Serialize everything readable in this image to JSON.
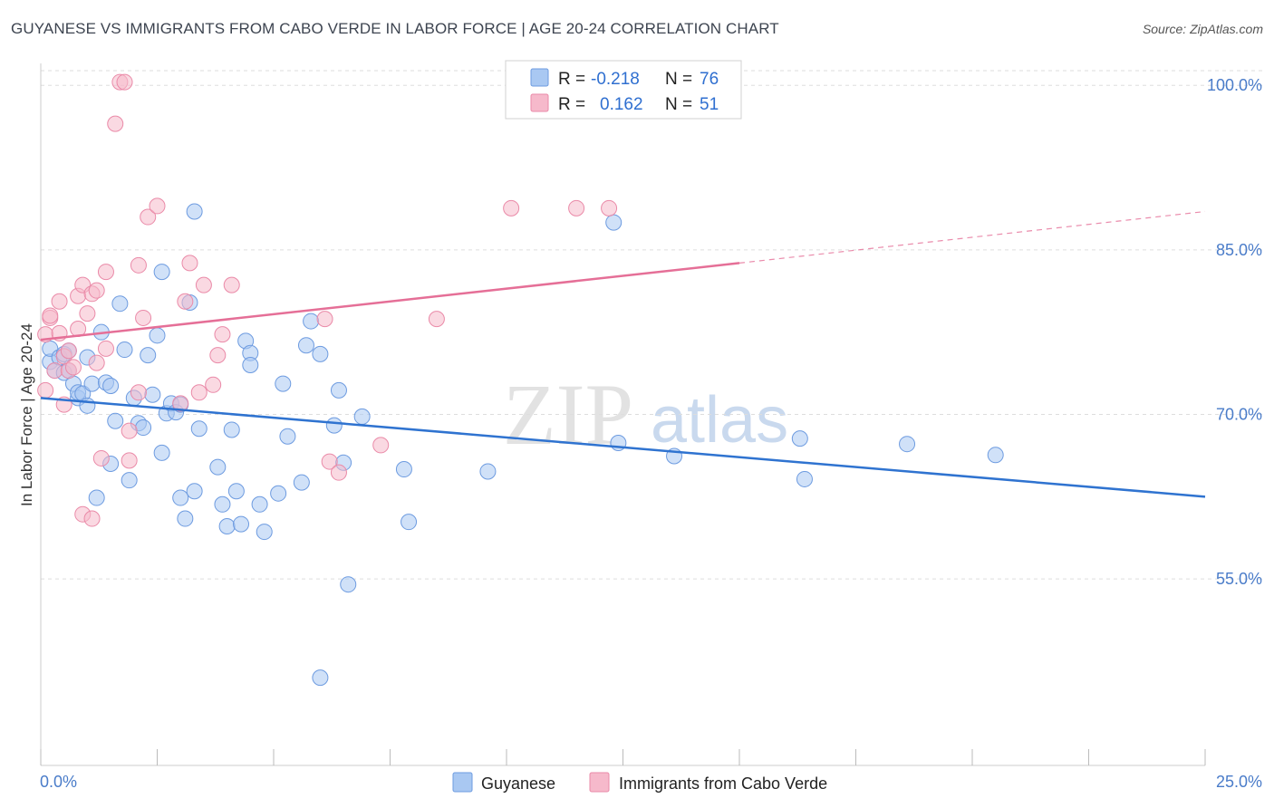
{
  "header": {
    "title": "GUYANESE VS IMMIGRANTS FROM CABO VERDE IN LABOR FORCE | AGE 20-24 CORRELATION CHART",
    "source": "Source: ZipAtlas.com"
  },
  "watermark": {
    "zip": "ZIP",
    "atlas": "atlas"
  },
  "legend": {
    "rows": [
      {
        "r_label": "R =",
        "r_value": "-0.218",
        "n_label": "N =",
        "n_value": "76"
      },
      {
        "r_label": "R =",
        "r_value": "0.162",
        "n_label": "N =",
        "n_value": "51"
      }
    ]
  },
  "colors": {
    "guyanese_fill": "#a9c8f2",
    "guyanese_stroke": "#6d9be0",
    "guyanese_line": "#2f73d0",
    "caboverde_fill": "#f6b9cb",
    "caboverde_stroke": "#ea8aa8",
    "caboverde_line": "#e56f97",
    "tick_label": "#4a7cc9",
    "grid": "#dddddd"
  },
  "chart_data": {
    "type": "scatter",
    "title": "GUYANESE VS IMMIGRANTS FROM CABO VERDE IN LABOR FORCE | AGE 20-24 CORRELATION CHART",
    "ylabel": "In Labor Force | Age 20-24",
    "xlabel": "",
    "xlim": [
      0,
      25
    ],
    "ylim": [
      38,
      102
    ],
    "x_tick_labels": [
      "0.0%",
      "25.0%"
    ],
    "x_tick_values": [
      0,
      25
    ],
    "y_tick_labels": [
      "100.0%",
      "85.0%",
      "70.0%",
      "55.0%"
    ],
    "y_tick_values": [
      100,
      85,
      70,
      55
    ],
    "grid": true,
    "legend_position": "top-center",
    "series": [
      {
        "name": "Guyanese",
        "r": -0.218,
        "n": 76,
        "trend": {
          "x0": 0,
          "y0": 71.5,
          "x1": 25,
          "y1": 62.5
        },
        "points": [
          [
            0.2,
            74.8
          ],
          [
            0.2,
            76.0
          ],
          [
            0.3,
            74.0
          ],
          [
            0.4,
            75.2
          ],
          [
            0.5,
            73.8
          ],
          [
            0.5,
            75.5
          ],
          [
            0.6,
            74.0
          ],
          [
            0.6,
            75.8
          ],
          [
            0.7,
            72.8
          ],
          [
            0.8,
            71.5
          ],
          [
            0.8,
            72.0
          ],
          [
            0.9,
            71.9
          ],
          [
            1.0,
            75.2
          ],
          [
            1.0,
            70.8
          ],
          [
            1.1,
            72.8
          ],
          [
            1.2,
            62.4
          ],
          [
            1.3,
            77.5
          ],
          [
            1.4,
            72.9
          ],
          [
            1.5,
            65.5
          ],
          [
            1.5,
            72.6
          ],
          [
            1.6,
            69.4
          ],
          [
            1.7,
            80.1
          ],
          [
            1.8,
            75.9
          ],
          [
            1.9,
            64.0
          ],
          [
            2.0,
            71.5
          ],
          [
            2.1,
            69.2
          ],
          [
            2.2,
            68.8
          ],
          [
            2.3,
            75.4
          ],
          [
            2.4,
            71.8
          ],
          [
            2.5,
            77.2
          ],
          [
            2.6,
            83.0
          ],
          [
            2.6,
            66.5
          ],
          [
            2.7,
            70.1
          ],
          [
            2.8,
            71.0
          ],
          [
            2.9,
            70.2
          ],
          [
            3.0,
            62.4
          ],
          [
            3.0,
            70.9
          ],
          [
            3.1,
            60.5
          ],
          [
            3.2,
            80.2
          ],
          [
            3.3,
            63.0
          ],
          [
            3.3,
            88.5
          ],
          [
            3.4,
            68.7
          ],
          [
            3.8,
            65.2
          ],
          [
            3.9,
            61.8
          ],
          [
            4.0,
            59.8
          ],
          [
            4.1,
            68.6
          ],
          [
            4.2,
            63.0
          ],
          [
            4.3,
            60.0
          ],
          [
            4.4,
            76.7
          ],
          [
            4.5,
            75.6
          ],
          [
            4.5,
            74.5
          ],
          [
            4.7,
            61.8
          ],
          [
            4.8,
            59.3
          ],
          [
            5.1,
            62.8
          ],
          [
            5.2,
            72.8
          ],
          [
            5.3,
            68.0
          ],
          [
            5.6,
            63.8
          ],
          [
            5.7,
            76.3
          ],
          [
            5.8,
            78.5
          ],
          [
            6.0,
            75.5
          ],
          [
            6.0,
            46.0
          ],
          [
            6.3,
            69.0
          ],
          [
            6.4,
            72.2
          ],
          [
            6.5,
            65.6
          ],
          [
            6.6,
            54.5
          ],
          [
            6.9,
            69.8
          ],
          [
            7.8,
            65.0
          ],
          [
            7.9,
            60.2
          ],
          [
            9.6,
            64.8
          ],
          [
            12.3,
            87.5
          ],
          [
            12.4,
            67.4
          ],
          [
            13.6,
            66.2
          ],
          [
            16.3,
            67.8
          ],
          [
            16.4,
            64.1
          ],
          [
            18.6,
            67.3
          ],
          [
            20.5,
            66.3
          ]
        ]
      },
      {
        "name": "Immigrants from Cabo Verde",
        "r": 0.162,
        "n": 51,
        "trend": {
          "x0": 0,
          "y0": 76.8,
          "x1": 15,
          "y1": 83.8,
          "dashed_to_x": 25,
          "dashed_to_y": 88.5
        },
        "points": [
          [
            0.1,
            72.2
          ],
          [
            0.1,
            77.3
          ],
          [
            0.2,
            78.8
          ],
          [
            0.2,
            79.0
          ],
          [
            0.3,
            74.0
          ],
          [
            0.4,
            77.4
          ],
          [
            0.4,
            80.3
          ],
          [
            0.5,
            75.3
          ],
          [
            0.5,
            70.9
          ],
          [
            0.6,
            74.0
          ],
          [
            0.6,
            75.8
          ],
          [
            0.7,
            74.3
          ],
          [
            0.8,
            77.8
          ],
          [
            0.8,
            80.8
          ],
          [
            0.9,
            60.9
          ],
          [
            0.9,
            81.8
          ],
          [
            1.0,
            79.2
          ],
          [
            1.1,
            60.5
          ],
          [
            1.1,
            81.0
          ],
          [
            1.2,
            74.7
          ],
          [
            1.2,
            81.3
          ],
          [
            1.3,
            66.0
          ],
          [
            1.4,
            76.0
          ],
          [
            1.4,
            83.0
          ],
          [
            1.6,
            96.5
          ],
          [
            1.7,
            100.3
          ],
          [
            1.8,
            100.3
          ],
          [
            1.9,
            68.5
          ],
          [
            1.9,
            65.8
          ],
          [
            2.1,
            83.6
          ],
          [
            2.1,
            72.0
          ],
          [
            2.2,
            78.8
          ],
          [
            2.3,
            88.0
          ],
          [
            2.5,
            89.0
          ],
          [
            3.0,
            71.0
          ],
          [
            3.1,
            80.3
          ],
          [
            3.2,
            83.8
          ],
          [
            3.4,
            72.0
          ],
          [
            3.5,
            81.8
          ],
          [
            3.7,
            72.7
          ],
          [
            3.8,
            75.4
          ],
          [
            3.9,
            77.3
          ],
          [
            4.1,
            81.8
          ],
          [
            6.1,
            78.7
          ],
          [
            6.2,
            65.7
          ],
          [
            6.4,
            64.7
          ],
          [
            7.3,
            67.2
          ],
          [
            8.5,
            78.7
          ],
          [
            10.1,
            88.8
          ],
          [
            11.5,
            88.8
          ],
          [
            12.2,
            88.8
          ]
        ]
      }
    ]
  }
}
